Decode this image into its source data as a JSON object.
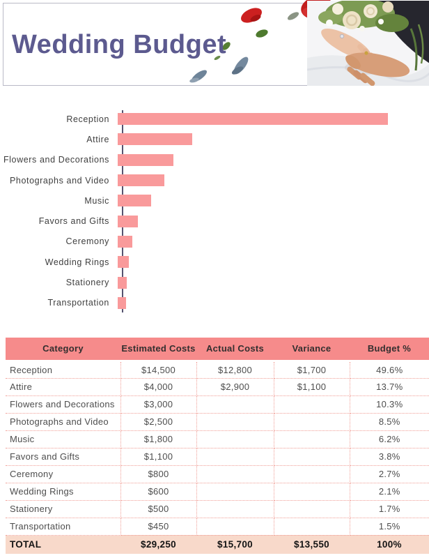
{
  "header": {
    "title": "Wedding Budget"
  },
  "chart_data": {
    "type": "bar",
    "orientation": "horizontal",
    "title": "",
    "xlabel": "",
    "ylabel": "",
    "categories": [
      "Reception",
      "Attire",
      "Flowers and Decorations",
      "Photographs and Video",
      "Music",
      "Favors and Gifts",
      "Ceremony",
      "Wedding Rings",
      "Stationery",
      "Transportation"
    ],
    "series": [
      {
        "name": "Estimated Costs",
        "values": [
          14500,
          4000,
          3000,
          2500,
          1800,
          1100,
          800,
          600,
          500,
          450
        ]
      }
    ],
    "xlim": [
      0,
      16700
    ],
    "grid": false,
    "legend": false,
    "bar_color": "#f99a9b",
    "axis_color": "#55536f"
  },
  "table": {
    "columns": [
      "Category",
      "Estimated Costs",
      "Actual Costs",
      "Variance",
      "Budget %"
    ],
    "rows": [
      [
        "Reception",
        "$14,500",
        "$12,800",
        "$1,700",
        "49.6%"
      ],
      [
        "Attire",
        "$4,000",
        "$2,900",
        "$1,100",
        "13.7%"
      ],
      [
        "Flowers and Decorations",
        "$3,000",
        "",
        "",
        "10.3%"
      ],
      [
        "Photographs and Video",
        "$2,500",
        "",
        "",
        "8.5%"
      ],
      [
        "Music",
        "$1,800",
        "",
        "",
        "6.2%"
      ],
      [
        "Favors and Gifts",
        "$1,100",
        "",
        "",
        "3.8%"
      ],
      [
        "Ceremony",
        "$800",
        "",
        "",
        "2.7%"
      ],
      [
        "Wedding Rings",
        "$600",
        "",
        "",
        "2.1%"
      ],
      [
        "Stationery",
        "$500",
        "",
        "",
        "1.7%"
      ],
      [
        "Transportation",
        "$450",
        "",
        "",
        "1.5%"
      ]
    ],
    "total_row": [
      "TOTAL",
      "$29,250",
      "$15,700",
      "$13,550",
      "100%"
    ]
  },
  "colors": {
    "title_text": "#5c5a8f",
    "bar_pink": "#f99a9b",
    "table_header_bg": "#f68b8b",
    "total_row_bg": "#f8d9ca",
    "dotted_border": "#f09d95"
  }
}
